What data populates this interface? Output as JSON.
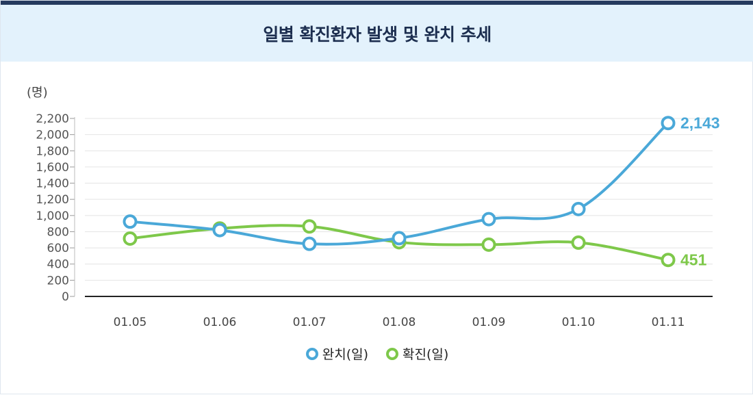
{
  "chart_data": {
    "type": "line",
    "title": "일별 확진환자 발생 및 완치 추세",
    "unit_label": "(명)",
    "categories": [
      "01.05",
      "01.06",
      "01.07",
      "01.08",
      "01.09",
      "01.10",
      "01.11"
    ],
    "ylim": [
      0,
      2200
    ],
    "yticks": [
      0,
      200,
      400,
      600,
      800,
      1000,
      1200,
      1400,
      1600,
      1800,
      2000,
      2200
    ],
    "ytick_labels": [
      "0",
      "200",
      "400",
      "600",
      "800",
      "1,000",
      "1,200",
      "1,400",
      "1,600",
      "1,800",
      "2,000",
      "2,200"
    ],
    "grid": true,
    "legend_position": "bottom-center",
    "series": [
      {
        "name": "완치(일)",
        "color": "#4aa8d8",
        "values": [
          925,
          820,
          650,
          720,
          955,
          1080,
          2143
        ],
        "end_label": "2,143"
      },
      {
        "name": "확진(일)",
        "color": "#7ec84a",
        "values": [
          715,
          840,
          865,
          670,
          640,
          665,
          451
        ],
        "end_label": "451"
      }
    ]
  }
}
